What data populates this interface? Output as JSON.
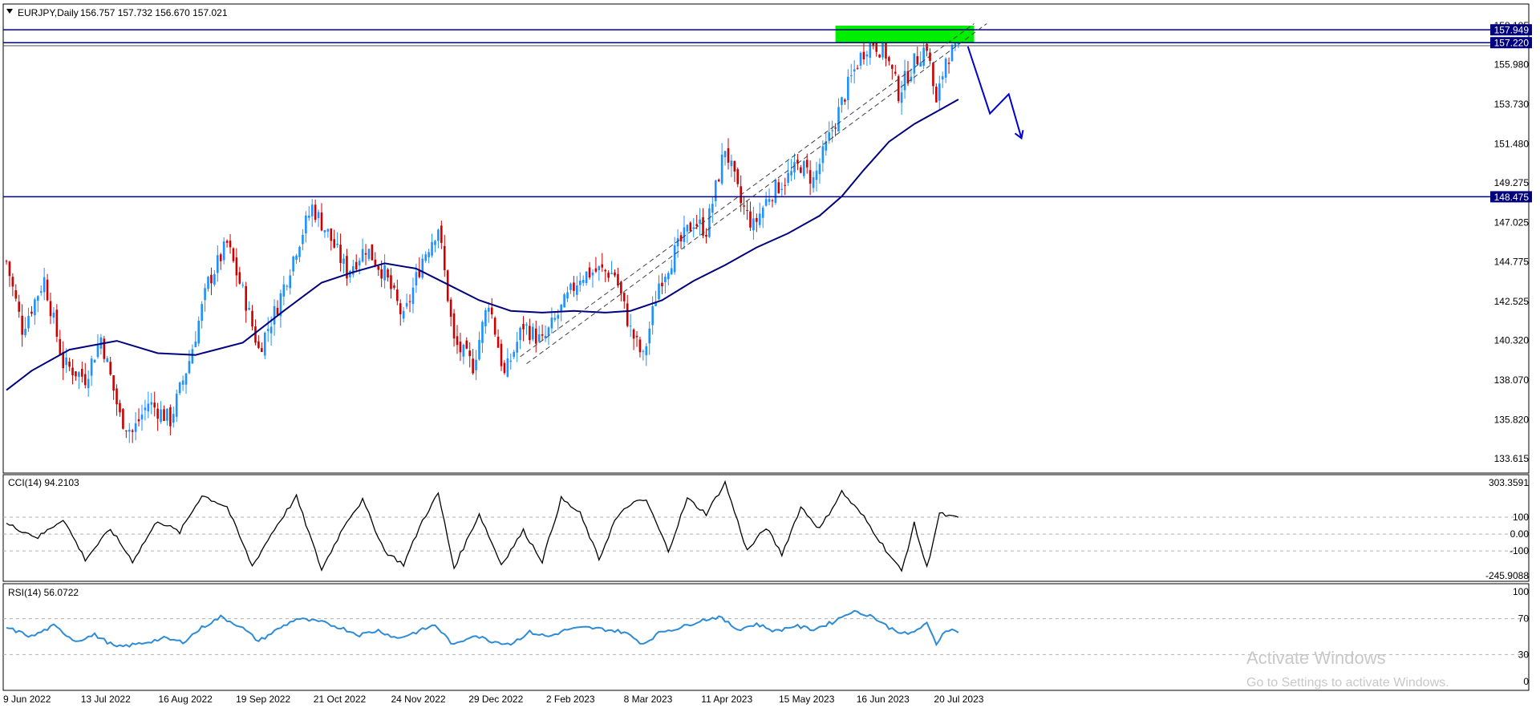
{
  "header": {
    "symbol": "EURJPY,Daily",
    "ohlc": "156.757 157.732 156.670 157.021"
  },
  "price_axis": {
    "ticks": [
      "158.185",
      "155.980",
      "153.730",
      "151.480",
      "149.275",
      "147.025",
      "144.775",
      "142.525",
      "140.320",
      "138.070",
      "135.820",
      "133.615"
    ],
    "tick_values": [
      158.185,
      155.98,
      153.73,
      151.48,
      149.275,
      147.025,
      144.775,
      142.525,
      140.32,
      138.07,
      135.82,
      133.615
    ],
    "level_labels": [
      {
        "text": "157.949",
        "value": 157.949
      },
      {
        "text": "157.220",
        "value": 157.22
      },
      {
        "text": "148.475",
        "value": 148.475
      }
    ],
    "colors": {
      "level_line": "#00007f",
      "label_bg": "#00007f",
      "label_fg": "#ffffff"
    }
  },
  "cci": {
    "title": "CCI(14) 94.2103",
    "ticks": [
      "303.3591",
      "100",
      "0.00",
      "-100",
      "-245.9088"
    ],
    "tick_values": [
      303.3591,
      100,
      0,
      -100,
      -245.9088
    ]
  },
  "rsi": {
    "title": "RSI(14) 56.0722",
    "ticks": [
      "100",
      "70",
      "30",
      "0"
    ],
    "tick_values": [
      100,
      70,
      30,
      0
    ],
    "color": "#2e8bd6"
  },
  "time_axis": {
    "labels": [
      "9 Jun 2022",
      "13 Jul 2022",
      "16 Aug 2022",
      "19 Sep 2022",
      "21 Oct 2022",
      "24 Nov 2022",
      "29 Dec 2022",
      "2 Feb 2023",
      "8 Mar 2023",
      "11 Apr 2023",
      "15 May 2023",
      "16 Jun 2023",
      "20 Jul 2023"
    ]
  },
  "watermark": {
    "line1": "Activate Windows",
    "line2": "Go to Settings to activate Windows."
  },
  "chart_data": {
    "type": "candlestick",
    "symbol": "EURJPY",
    "timeframe": "Daily",
    "x_range": [
      "9 Jun 2022",
      "20 Jul 2023"
    ],
    "price_range": [
      133.615,
      158.185
    ],
    "colors": {
      "bull": "#1e90ff",
      "bear": "#cc0000",
      "ma": "#00007f",
      "green_zone": "#00ee00",
      "projection": "#0000cc"
    },
    "horizontal_levels": [
      157.949,
      157.22,
      148.475
    ],
    "resistance_zone": [
      157.22,
      158.185
    ],
    "moving_average_approx": [
      [
        0,
        137.5
      ],
      [
        8,
        138.6
      ],
      [
        20,
        139.8
      ],
      [
        35,
        140.3
      ],
      [
        48,
        139.6
      ],
      [
        60,
        139.5
      ],
      [
        75,
        140.2
      ],
      [
        88,
        142.0
      ],
      [
        100,
        143.6
      ],
      [
        110,
        144.2
      ],
      [
        120,
        144.7
      ],
      [
        130,
        144.4
      ],
      [
        140,
        143.5
      ],
      [
        150,
        142.6
      ],
      [
        160,
        142.0
      ],
      [
        170,
        141.9
      ],
      [
        180,
        142.0
      ],
      [
        190,
        141.9
      ],
      [
        198,
        142.0
      ],
      [
        208,
        142.6
      ],
      [
        218,
        143.7
      ],
      [
        228,
        144.6
      ],
      [
        238,
        145.6
      ],
      [
        248,
        146.4
      ],
      [
        258,
        147.4
      ],
      [
        265,
        148.5
      ],
      [
        272,
        150.0
      ],
      [
        280,
        151.6
      ],
      [
        288,
        152.6
      ],
      [
        296,
        153.4
      ],
      [
        302,
        154.0
      ]
    ],
    "close_path_approx": [
      [
        0,
        144.8
      ],
      [
        5,
        141.0
      ],
      [
        12,
        143.8
      ],
      [
        18,
        139.0
      ],
      [
        25,
        138.2
      ],
      [
        30,
        140.5
      ],
      [
        36,
        136.0
      ],
      [
        40,
        135.1
      ],
      [
        45,
        136.8
      ],
      [
        52,
        135.8
      ],
      [
        58,
        139.2
      ],
      [
        64,
        143.6
      ],
      [
        70,
        145.8
      ],
      [
        76,
        142.5
      ],
      [
        80,
        139.8
      ],
      [
        86,
        142.3
      ],
      [
        92,
        145.6
      ],
      [
        97,
        147.9
      ],
      [
        102,
        146.4
      ],
      [
        108,
        144.2
      ],
      [
        114,
        145.6
      ],
      [
        120,
        144.1
      ],
      [
        126,
        141.5
      ],
      [
        132,
        145.0
      ],
      [
        137,
        146.8
      ],
      [
        142,
        140.2
      ],
      [
        148,
        138.9
      ],
      [
        153,
        142.6
      ],
      [
        158,
        138.3
      ],
      [
        164,
        141.2
      ],
      [
        170,
        140.2
      ],
      [
        176,
        142.1
      ],
      [
        182,
        144.0
      ],
      [
        188,
        144.3
      ],
      [
        193,
        144.1
      ],
      [
        198,
        140.9
      ],
      [
        202,
        139.3
      ],
      [
        207,
        143.6
      ],
      [
        212,
        145.3
      ],
      [
        218,
        147.1
      ],
      [
        222,
        146.6
      ],
      [
        228,
        151.3
      ],
      [
        233,
        148.1
      ],
      [
        237,
        146.8
      ],
      [
        242,
        148.6
      ],
      [
        248,
        149.6
      ],
      [
        252,
        150.3
      ],
      [
        256,
        149.4
      ],
      [
        260,
        151.3
      ],
      [
        266,
        154.3
      ],
      [
        270,
        156.1
      ],
      [
        274,
        157.4
      ],
      [
        279,
        156.6
      ],
      [
        283,
        154.4
      ],
      [
        288,
        156.1
      ],
      [
        292,
        157.1
      ],
      [
        295,
        153.6
      ],
      [
        298,
        156.4
      ],
      [
        302,
        157.0
      ]
    ],
    "projection_path_approx": [
      [
        305,
        157.0
      ],
      [
        312,
        153.2
      ],
      [
        318,
        154.3
      ],
      [
        322,
        151.8
      ]
    ],
    "cci_approx": [
      [
        0,
        60
      ],
      [
        10,
        -20
      ],
      [
        18,
        90
      ],
      [
        25,
        -150
      ],
      [
        33,
        30
      ],
      [
        40,
        -160
      ],
      [
        48,
        80
      ],
      [
        55,
        10
      ],
      [
        62,
        230
      ],
      [
        70,
        160
      ],
      [
        78,
        -190
      ],
      [
        85,
        30
      ],
      [
        92,
        220
      ],
      [
        100,
        -210
      ],
      [
        108,
        80
      ],
      [
        113,
        200
      ],
      [
        120,
        -100
      ],
      [
        126,
        -180
      ],
      [
        132,
        80
      ],
      [
        137,
        240
      ],
      [
        142,
        -200
      ],
      [
        150,
        120
      ],
      [
        157,
        -180
      ],
      [
        164,
        20
      ],
      [
        170,
        -160
      ],
      [
        176,
        210
      ],
      [
        182,
        120
      ],
      [
        188,
        -150
      ],
      [
        193,
        80
      ],
      [
        198,
        180
      ],
      [
        203,
        200
      ],
      [
        210,
        -100
      ],
      [
        216,
        210
      ],
      [
        222,
        120
      ],
      [
        228,
        303
      ],
      [
        235,
        -100
      ],
      [
        241,
        40
      ],
      [
        246,
        -120
      ],
      [
        252,
        160
      ],
      [
        258,
        30
      ],
      [
        265,
        250
      ],
      [
        272,
        100
      ],
      [
        280,
        -120
      ],
      [
        284,
        -220
      ],
      [
        288,
        60
      ],
      [
        292,
        -200
      ],
      [
        296,
        120
      ],
      [
        300,
        100
      ],
      [
        302,
        94
      ]
    ],
    "rsi_approx": [
      [
        0,
        60
      ],
      [
        8,
        50
      ],
      [
        15,
        62
      ],
      [
        22,
        45
      ],
      [
        28,
        52
      ],
      [
        35,
        38
      ],
      [
        42,
        42
      ],
      [
        50,
        48
      ],
      [
        56,
        44
      ],
      [
        62,
        60
      ],
      [
        68,
        72
      ],
      [
        74,
        62
      ],
      [
        80,
        45
      ],
      [
        86,
        58
      ],
      [
        92,
        70
      ],
      [
        100,
        66
      ],
      [
        106,
        60
      ],
      [
        112,
        52
      ],
      [
        118,
        57
      ],
      [
        124,
        48
      ],
      [
        130,
        55
      ],
      [
        136,
        63
      ],
      [
        142,
        40
      ],
      [
        148,
        52
      ],
      [
        154,
        45
      ],
      [
        160,
        42
      ],
      [
        166,
        55
      ],
      [
        172,
        50
      ],
      [
        178,
        58
      ],
      [
        184,
        60
      ],
      [
        190,
        58
      ],
      [
        196,
        55
      ],
      [
        202,
        42
      ],
      [
        208,
        56
      ],
      [
        214,
        60
      ],
      [
        220,
        68
      ],
      [
        226,
        72
      ],
      [
        232,
        58
      ],
      [
        238,
        64
      ],
      [
        244,
        56
      ],
      [
        250,
        62
      ],
      [
        256,
        58
      ],
      [
        262,
        66
      ],
      [
        268,
        78
      ],
      [
        274,
        74
      ],
      [
        280,
        60
      ],
      [
        286,
        52
      ],
      [
        292,
        64
      ],
      [
        295,
        42
      ],
      [
        298,
        58
      ],
      [
        302,
        56
      ]
    ]
  }
}
